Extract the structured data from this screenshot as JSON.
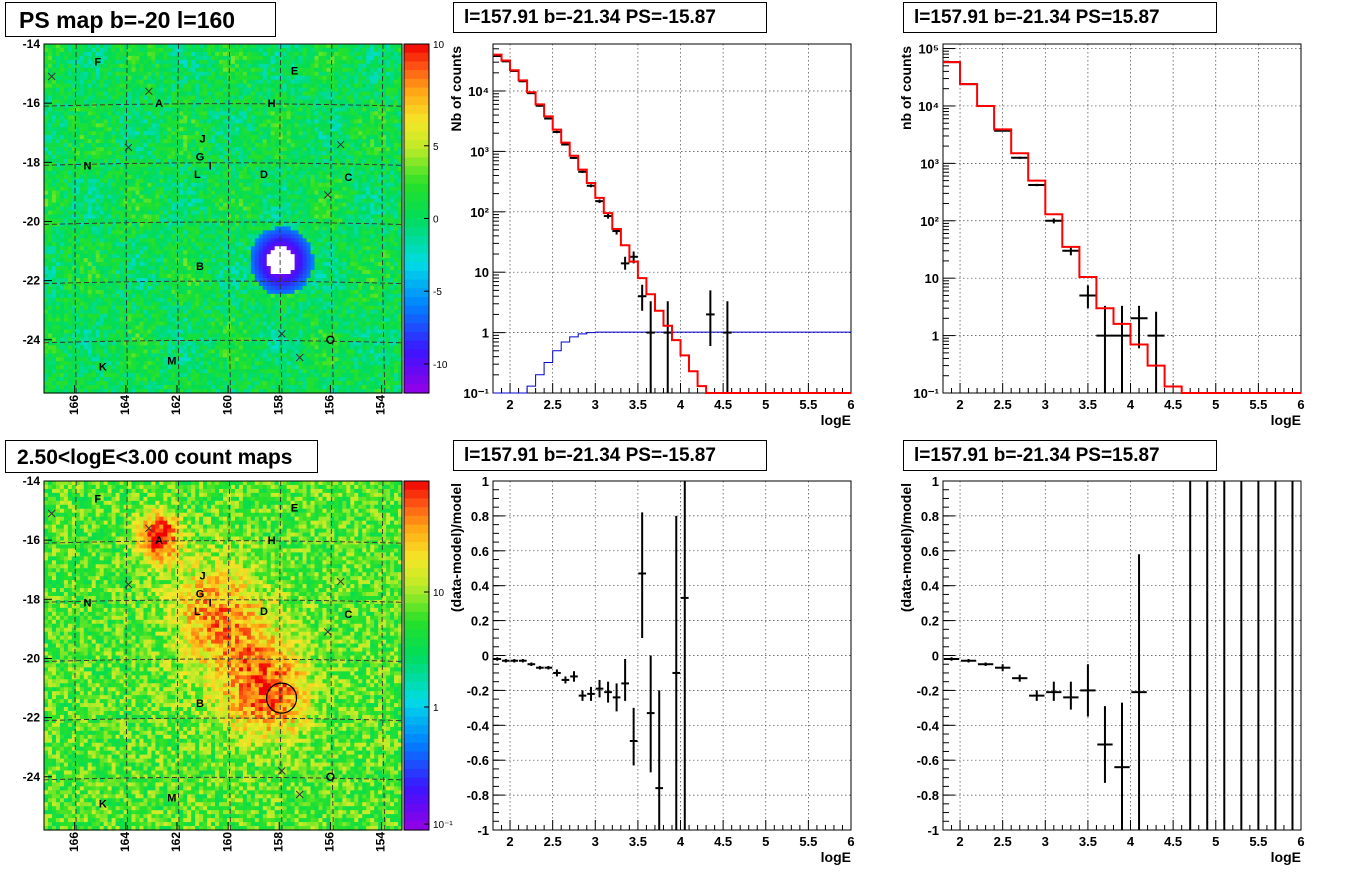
{
  "panels": {
    "ps_map": {
      "title": "PS map b=-20 l=160"
    },
    "count_map": {
      "title": "2.50<logE<3.00 count maps"
    },
    "spec_neg": {
      "title": "l=157.91 b=-21.34 PS=-15.87"
    },
    "spec_pos": {
      "title": "l=157.91 b=-21.34 PS=15.87"
    },
    "res_neg": {
      "title": "l=157.91 b=-21.34 PS=-15.87"
    },
    "res_pos": {
      "title": "l=157.91 b=-21.34 PS=15.87"
    }
  },
  "colors": {
    "model_line": "#ff0000",
    "ps_line": "#0000cc",
    "data": "#000000"
  },
  "chart_data": [
    {
      "id": "ps_map",
      "type": "heatmap",
      "title": "PS map b=-20 l=160",
      "x_ticks": [
        "166",
        "164",
        "162",
        "160",
        "158",
        "156",
        "154"
      ],
      "y_ticks": [
        "-14",
        "-16",
        "-18",
        "-20",
        "-22",
        "-24"
      ],
      "xlim": [
        167.2,
        153.2
      ],
      "ylim": [
        -25.8,
        -14
      ],
      "colorbar": {
        "ticks": [
          "10",
          "5",
          "0",
          "-5",
          "-10"
        ],
        "range": [
          -12,
          12
        ]
      },
      "source": {
        "l": 157.91,
        "b": -21.34
      },
      "markers_x": [
        [
          166.9,
          -15.1
        ],
        [
          163.1,
          -15.6
        ],
        [
          163.9,
          -17.5
        ],
        [
          155.6,
          -17.4
        ],
        [
          156.1,
          -19.1
        ],
        [
          157.9,
          -23.8
        ],
        [
          157.2,
          -24.6
        ]
      ],
      "markers_o": [
        [
          156.0,
          -24.0
        ]
      ],
      "labels": [
        {
          "t": "F",
          "l": 165.1,
          "b": -14.6
        },
        {
          "t": "E",
          "l": 157.4,
          "b": -14.9
        },
        {
          "t": "A",
          "l": 162.7,
          "b": -16.0
        },
        {
          "t": "H",
          "l": 158.3,
          "b": -16.0
        },
        {
          "t": "J",
          "l": 161.0,
          "b": -17.2
        },
        {
          "t": "G",
          "l": 161.1,
          "b": -17.8
        },
        {
          "t": "I",
          "l": 160.7,
          "b": -18.1
        },
        {
          "t": "L",
          "l": 161.2,
          "b": -18.4
        },
        {
          "t": "D",
          "l": 158.6,
          "b": -18.4
        },
        {
          "t": "N",
          "l": 165.5,
          "b": -18.1
        },
        {
          "t": "C",
          "l": 155.3,
          "b": -18.5
        },
        {
          "t": "B",
          "l": 161.1,
          "b": -21.5
        },
        {
          "t": "K",
          "l": 164.9,
          "b": -24.9
        },
        {
          "t": "M",
          "l": 162.2,
          "b": -24.7
        }
      ]
    },
    {
      "id": "count_map",
      "type": "heatmap",
      "title": "2.50<logE<3.00 count maps",
      "x_ticks": [
        "166",
        "164",
        "162",
        "160",
        "158",
        "156",
        "154"
      ],
      "y_ticks": [
        "-14",
        "-16",
        "-18",
        "-20",
        "-22",
        "-24"
      ],
      "xlim": [
        167.2,
        153.2
      ],
      "ylim": [
        -25.8,
        -14
      ],
      "colorbar": {
        "ticks": [
          "10",
          "1",
          "10⁻¹"
        ],
        "log": true
      },
      "circle": {
        "l": 157.91,
        "b": -21.34,
        "r": 0.7
      },
      "markers_x": [
        [
          166.9,
          -15.1
        ],
        [
          163.1,
          -15.6
        ],
        [
          163.9,
          -17.5
        ],
        [
          155.6,
          -17.4
        ],
        [
          156.1,
          -19.1
        ],
        [
          157.9,
          -23.8
        ],
        [
          157.2,
          -24.6
        ]
      ],
      "markers_o": [
        [
          156.0,
          -24.0
        ]
      ],
      "labels": [
        {
          "t": "F",
          "l": 165.1,
          "b": -14.6
        },
        {
          "t": "E",
          "l": 157.4,
          "b": -14.9
        },
        {
          "t": "A",
          "l": 162.7,
          "b": -16.0
        },
        {
          "t": "H",
          "l": 158.3,
          "b": -16.0
        },
        {
          "t": "J",
          "l": 161.0,
          "b": -17.2
        },
        {
          "t": "G",
          "l": 161.1,
          "b": -17.8
        },
        {
          "t": "I",
          "l": 160.7,
          "b": -18.1
        },
        {
          "t": "L",
          "l": 161.2,
          "b": -18.4
        },
        {
          "t": "D",
          "l": 158.6,
          "b": -18.4
        },
        {
          "t": "N",
          "l": 165.5,
          "b": -18.1
        },
        {
          "t": "C",
          "l": 155.3,
          "b": -18.5
        },
        {
          "t": "B",
          "l": 161.1,
          "b": -21.5
        },
        {
          "t": "K",
          "l": 164.9,
          "b": -24.9
        },
        {
          "t": "M",
          "l": 162.2,
          "b": -24.7
        }
      ]
    },
    {
      "id": "spec_neg",
      "type": "line",
      "title": "l=157.91 b=-21.34 PS=-15.87",
      "xlabel": "logE",
      "ylabel": "Nb of counts",
      "xlim": [
        1.8,
        6.0
      ],
      "ylim": [
        0.1,
        60000
      ],
      "log_y": true,
      "x_ticks": [
        "2",
        "2.5",
        "3",
        "3.5",
        "4",
        "4.5",
        "5",
        "5.5",
        "6"
      ],
      "y_ticks": [
        {
          "v": 0.1,
          "t": "10⁻¹"
        },
        {
          "v": 1,
          "t": "1"
        },
        {
          "v": 10,
          "t": "10"
        },
        {
          "v": 100,
          "t": "10²"
        },
        {
          "v": 1000,
          "t": "10³"
        },
        {
          "v": 10000,
          "t": "10⁴"
        }
      ],
      "bin_width": 0.1,
      "model_bin_edges_start": 1.8,
      "model_values": [
        40000,
        32000,
        22000,
        15000,
        9500,
        6000,
        3800,
        2300,
        1400,
        850,
        500,
        300,
        170,
        95,
        52,
        28,
        15,
        8,
        4.3,
        2.3,
        1.3,
        0.75,
        0.42,
        0.23,
        0.13,
        0.08,
        0.08,
        0.08,
        0.08,
        0.08,
        0.08,
        0.08,
        0.08,
        0.08,
        0.08,
        0.08,
        0.08,
        0.08,
        0.08,
        0.08,
        0.08,
        0.08
      ],
      "ps_values": [
        0.08,
        0.08,
        0.08,
        0.1,
        0.13,
        0.2,
        0.32,
        0.5,
        0.7,
        0.85,
        0.95,
        1.0,
        1.02,
        1.02,
        1.02,
        1.02,
        1.02,
        1.02,
        1.02,
        1.02,
        1.02,
        1.02,
        1.02,
        1.02,
        1.02,
        1.02,
        1.02,
        1.02,
        1.02,
        1.02,
        1.02,
        1.02,
        1.02,
        1.02,
        1.02,
        1.02,
        1.02,
        1.02,
        1.02,
        1.02,
        1.02,
        1.02
      ],
      "points": [
        {
          "x": 1.85,
          "y": 38000,
          "lo": 37000,
          "hi": 39000
        },
        {
          "x": 1.95,
          "y": 31000,
          "lo": 30000,
          "hi": 32000
        },
        {
          "x": 2.05,
          "y": 21500,
          "lo": 21000,
          "hi": 22000
        },
        {
          "x": 2.15,
          "y": 14500,
          "lo": 14000,
          "hi": 15000
        },
        {
          "x": 2.25,
          "y": 9200,
          "lo": 9000,
          "hi": 9400
        },
        {
          "x": 2.35,
          "y": 5700,
          "lo": 5500,
          "hi": 5900
        },
        {
          "x": 2.45,
          "y": 3500,
          "lo": 3400,
          "hi": 3600
        },
        {
          "x": 2.55,
          "y": 2100,
          "lo": 2000,
          "hi": 2200
        },
        {
          "x": 2.65,
          "y": 1300,
          "lo": 1250,
          "hi": 1350
        },
        {
          "x": 2.75,
          "y": 780,
          "lo": 750,
          "hi": 810
        },
        {
          "x": 2.85,
          "y": 460,
          "lo": 440,
          "hi": 480
        },
        {
          "x": 2.95,
          "y": 270,
          "lo": 255,
          "hi": 285
        },
        {
          "x": 3.05,
          "y": 150,
          "lo": 140,
          "hi": 160
        },
        {
          "x": 3.15,
          "y": 85,
          "lo": 77,
          "hi": 93
        },
        {
          "x": 3.25,
          "y": 48,
          "lo": 42,
          "hi": 54
        },
        {
          "x": 3.35,
          "y": 14,
          "lo": 11,
          "hi": 18
        },
        {
          "x": 3.45,
          "y": 18,
          "lo": 14,
          "hi": 22
        },
        {
          "x": 3.55,
          "y": 4,
          "lo": 2.3,
          "hi": 6.2
        },
        {
          "x": 3.65,
          "y": 1,
          "lo": 0.1,
          "hi": 3.3
        },
        {
          "x": 3.85,
          "y": 1,
          "lo": 0.1,
          "hi": 3.3
        },
        {
          "x": 4.35,
          "y": 2,
          "lo": 0.6,
          "hi": 5
        },
        {
          "x": 4.55,
          "y": 1,
          "lo": 0.1,
          "hi": 3.3
        }
      ]
    },
    {
      "id": "spec_pos",
      "type": "line",
      "title": "l=157.91 b=-21.34 PS=15.87",
      "xlabel": "logE",
      "ylabel": "nb of counts",
      "xlim": [
        1.8,
        6.0
      ],
      "ylim": [
        0.1,
        120000
      ],
      "log_y": true,
      "x_ticks": [
        "2",
        "2.5",
        "3",
        "3.5",
        "4",
        "4.5",
        "5",
        "5.5",
        "6"
      ],
      "y_ticks": [
        {
          "v": 0.1,
          "t": "10⁻¹"
        },
        {
          "v": 1,
          "t": "1"
        },
        {
          "v": 10,
          "t": "10"
        },
        {
          "v": 100,
          "t": "10²"
        },
        {
          "v": 1000,
          "t": "10³"
        },
        {
          "v": 10000,
          "t": "10⁴"
        },
        {
          "v": 100000,
          "t": "10⁵"
        }
      ],
      "bin_width": 0.2,
      "model_bin_edges_start": 1.8,
      "model_values": [
        58000,
        24000,
        10000,
        3900,
        1500,
        500,
        130,
        35,
        10.5,
        3,
        1.6,
        0.7,
        0.3,
        0.13,
        0.08,
        0.08,
        0.08,
        0.08,
        0.08,
        0.08,
        0.08
      ],
      "points": [
        {
          "x": 1.9,
          "y": 58000,
          "lo": 57000,
          "hi": 59000
        },
        {
          "x": 2.1,
          "y": 24000,
          "lo": 23500,
          "hi": 24500
        },
        {
          "x": 2.3,
          "y": 10000,
          "lo": 9700,
          "hi": 10300
        },
        {
          "x": 2.5,
          "y": 3700,
          "lo": 3600,
          "hi": 3800
        },
        {
          "x": 2.7,
          "y": 1250,
          "lo": 1200,
          "hi": 1300
        },
        {
          "x": 2.9,
          "y": 420,
          "lo": 400,
          "hi": 440
        },
        {
          "x": 3.1,
          "y": 100,
          "lo": 90,
          "hi": 110
        },
        {
          "x": 3.3,
          "y": 30,
          "lo": 25,
          "hi": 36
        },
        {
          "x": 3.5,
          "y": 5,
          "lo": 3,
          "hi": 7.5
        },
        {
          "x": 3.7,
          "y": 1,
          "lo": 0.1,
          "hi": 3.3
        },
        {
          "x": 3.9,
          "y": 1,
          "lo": 0.1,
          "hi": 3.3
        },
        {
          "x": 4.1,
          "y": 2,
          "lo": 0.6,
          "hi": 3.3
        },
        {
          "x": 4.3,
          "y": 1,
          "lo": 0.1,
          "hi": 2.6
        }
      ]
    },
    {
      "id": "res_neg",
      "type": "scatter",
      "title": "l=157.91 b=-21.34 PS=-15.87",
      "xlabel": "logE",
      "ylabel": "(data-model)/model",
      "xlim": [
        1.8,
        6.0
      ],
      "ylim": [
        -1,
        1
      ],
      "x_ticks": [
        "2",
        "2.5",
        "3",
        "3.5",
        "4",
        "4.5",
        "5",
        "5.5",
        "6"
      ],
      "y_ticks": [
        "-1",
        "-0.8",
        "-0.6",
        "-0.4",
        "-0.2",
        "0",
        "0.2",
        "0.4",
        "0.6",
        "0.8",
        "1"
      ],
      "bin_width": 0.1,
      "points": [
        {
          "x": 1.85,
          "y": -0.02,
          "lo": -0.03,
          "hi": -0.01
        },
        {
          "x": 1.95,
          "y": -0.03,
          "lo": -0.04,
          "hi": -0.02
        },
        {
          "x": 2.05,
          "y": -0.03,
          "lo": -0.04,
          "hi": -0.02
        },
        {
          "x": 2.15,
          "y": -0.03,
          "lo": -0.04,
          "hi": -0.02
        },
        {
          "x": 2.25,
          "y": -0.05,
          "lo": -0.06,
          "hi": -0.04
        },
        {
          "x": 2.35,
          "y": -0.07,
          "lo": -0.08,
          "hi": -0.06
        },
        {
          "x": 2.45,
          "y": -0.07,
          "lo": -0.08,
          "hi": -0.06
        },
        {
          "x": 2.55,
          "y": -0.1,
          "lo": -0.12,
          "hi": -0.08
        },
        {
          "x": 2.65,
          "y": -0.14,
          "lo": -0.16,
          "hi": -0.12
        },
        {
          "x": 2.75,
          "y": -0.12,
          "lo": -0.15,
          "hi": -0.09
        },
        {
          "x": 2.85,
          "y": -0.23,
          "lo": -0.26,
          "hi": -0.2
        },
        {
          "x": 2.95,
          "y": -0.22,
          "lo": -0.26,
          "hi": -0.18
        },
        {
          "x": 3.05,
          "y": -0.19,
          "lo": -0.24,
          "hi": -0.14
        },
        {
          "x": 3.15,
          "y": -0.21,
          "lo": -0.27,
          "hi": -0.15
        },
        {
          "x": 3.25,
          "y": -0.24,
          "lo": -0.32,
          "hi": -0.16
        },
        {
          "x": 3.35,
          "y": -0.16,
          "lo": -0.26,
          "hi": -0.02
        },
        {
          "x": 3.45,
          "y": -0.49,
          "lo": -0.63,
          "hi": -0.3
        },
        {
          "x": 3.55,
          "y": 0.47,
          "lo": 0.1,
          "hi": 0.82
        },
        {
          "x": 3.65,
          "y": -0.33,
          "lo": -0.67,
          "hi": 0.0
        },
        {
          "x": 3.75,
          "y": -0.76,
          "lo": -1.0,
          "hi": -0.2
        },
        {
          "x": 3.95,
          "y": -0.1,
          "lo": -1.0,
          "hi": 0.8
        },
        {
          "x": 4.05,
          "y": 0.33,
          "lo": -1.0,
          "hi": 1.0
        }
      ]
    },
    {
      "id": "res_pos",
      "type": "scatter",
      "title": "l=157.91 b=-21.34 PS=15.87",
      "xlabel": "logE",
      "ylabel": "(data-model)/model",
      "xlim": [
        1.8,
        6.0
      ],
      "ylim": [
        -1,
        1
      ],
      "x_ticks": [
        "2",
        "2.5",
        "3",
        "3.5",
        "4",
        "4.5",
        "5",
        "5.5",
        "6"
      ],
      "y_ticks": [
        "-1",
        "-0.8",
        "-0.6",
        "-0.4",
        "-0.2",
        "0",
        "0.2",
        "0.4",
        "0.6",
        "0.8",
        "1"
      ],
      "bin_width": 0.2,
      "points": [
        {
          "x": 1.9,
          "y": -0.02,
          "lo": -0.03,
          "hi": -0.01
        },
        {
          "x": 2.1,
          "y": -0.03,
          "lo": -0.04,
          "hi": -0.02
        },
        {
          "x": 2.3,
          "y": -0.05,
          "lo": -0.06,
          "hi": -0.04
        },
        {
          "x": 2.5,
          "y": -0.07,
          "lo": -0.09,
          "hi": -0.05
        },
        {
          "x": 2.7,
          "y": -0.13,
          "lo": -0.15,
          "hi": -0.11
        },
        {
          "x": 2.9,
          "y": -0.23,
          "lo": -0.26,
          "hi": -0.2
        },
        {
          "x": 3.1,
          "y": -0.21,
          "lo": -0.26,
          "hi": -0.15
        },
        {
          "x": 3.3,
          "y": -0.24,
          "lo": -0.31,
          "hi": -0.15
        },
        {
          "x": 3.5,
          "y": -0.2,
          "lo": -0.35,
          "hi": -0.05
        },
        {
          "x": 3.7,
          "y": -0.51,
          "lo": -0.73,
          "hi": -0.29
        },
        {
          "x": 3.9,
          "y": -0.64,
          "lo": -1.0,
          "hi": -0.27
        },
        {
          "x": 4.1,
          "y": -0.21,
          "lo": -1.0,
          "hi": 0.58
        }
      ],
      "full_bars_x": [
        4.7,
        4.9,
        5.1,
        5.3,
        5.5,
        5.7,
        5.9
      ]
    }
  ]
}
